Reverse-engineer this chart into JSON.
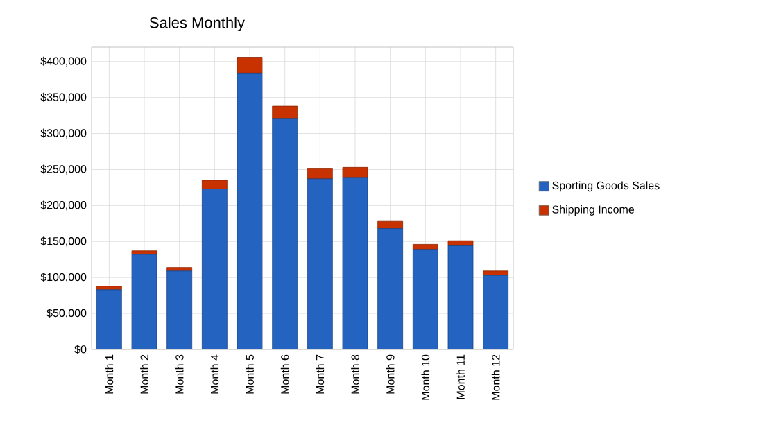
{
  "chart_data": {
    "type": "bar",
    "title": "Sales Monthly",
    "stacked": true,
    "categories": [
      "Month 1",
      "Month 2",
      "Month 3",
      "Month 4",
      "Month 5",
      "Month 6",
      "Month 7",
      "Month 8",
      "Month 9",
      "Month 10",
      "Month 11",
      "Month 12"
    ],
    "series": [
      {
        "name": "Sporting Goods Sales",
        "color": "#2563c0",
        "values": [
          83000,
          132000,
          109000,
          223000,
          384000,
          321000,
          237000,
          239000,
          168000,
          139000,
          144000,
          103000
        ]
      },
      {
        "name": "Shipping Income",
        "color": "#c83200",
        "values": [
          5000,
          5000,
          5000,
          12000,
          22000,
          17000,
          14000,
          14000,
          10000,
          7000,
          7000,
          6000
        ]
      }
    ],
    "ylim": [
      0,
      420000
    ],
    "yticks": [
      {
        "value": 0,
        "label": "$0"
      },
      {
        "value": 50000,
        "label": "$50,000"
      },
      {
        "value": 100000,
        "label": "$100,000"
      },
      {
        "value": 150000,
        "label": "$150,000"
      },
      {
        "value": 200000,
        "label": "$200,000"
      },
      {
        "value": 250000,
        "label": "$250,000"
      },
      {
        "value": 300000,
        "label": "$300,000"
      },
      {
        "value": 350000,
        "label": "$350,000"
      },
      {
        "value": 400000,
        "label": "$400,000"
      }
    ],
    "grid": true,
    "legend": "right"
  }
}
